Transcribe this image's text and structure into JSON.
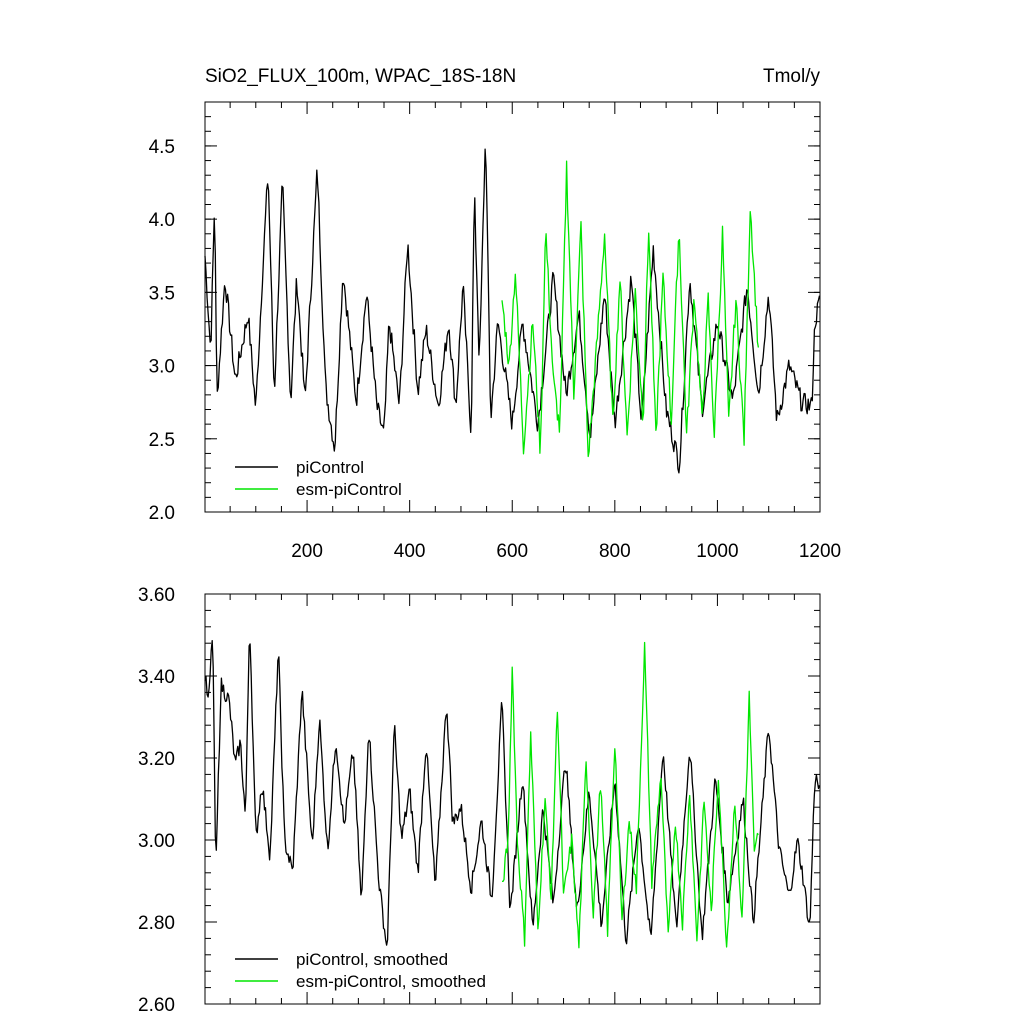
{
  "chart_data": [
    {
      "type": "line",
      "title": "SiO2_FLUX_100m, WPAC_18S-18N",
      "units_label": "Tmol/y",
      "xlim": [
        1,
        1200
      ],
      "ylim": [
        2.0,
        4.8
      ],
      "x_ticks": [
        200,
        400,
        600,
        800,
        1000,
        1200
      ],
      "x_tick_labels": [
        "200",
        "400",
        "600",
        "800",
        "1000",
        "1200"
      ],
      "y_ticks": [
        2.0,
        2.5,
        3.0,
        3.5,
        4.0,
        4.5
      ],
      "y_tick_labels": [
        "2.0",
        "2.5",
        "3.0",
        "3.5",
        "4.0",
        "4.5"
      ],
      "grid": false,
      "legend_position": "bottom-left",
      "series": [
        {
          "name": "piControl",
          "color": "#000000",
          "x_range": [
            1,
            1200
          ],
          "points": [
            [
              1,
              3.75
            ],
            [
              12,
              3.1
            ],
            [
              20,
              4.15
            ],
            [
              24,
              2.75
            ],
            [
              40,
              3.6
            ],
            [
              60,
              2.9
            ],
            [
              85,
              3.35
            ],
            [
              100,
              2.7
            ],
            [
              112,
              3.55
            ],
            [
              124,
              4.33
            ],
            [
              136,
              2.8
            ],
            [
              152,
              4.25
            ],
            [
              168,
              2.75
            ],
            [
              180,
              3.6
            ],
            [
              196,
              2.75
            ],
            [
              220,
              4.35
            ],
            [
              236,
              2.85
            ],
            [
              254,
              2.43
            ],
            [
              270,
              3.65
            ],
            [
              296,
              2.75
            ],
            [
              316,
              3.5
            ],
            [
              336,
              2.72
            ],
            [
              350,
              2.52
            ],
            [
              360,
              3.3
            ],
            [
              380,
              2.72
            ],
            [
              396,
              3.85
            ],
            [
              416,
              2.82
            ],
            [
              432,
              3.25
            ],
            [
              456,
              2.72
            ],
            [
              476,
              3.3
            ],
            [
              490,
              2.72
            ],
            [
              504,
              3.55
            ],
            [
              520,
              2.52
            ],
            [
              526,
              4.2
            ],
            [
              536,
              3.0
            ],
            [
              548,
              4.6
            ],
            [
              558,
              2.62
            ],
            [
              572,
              3.3
            ],
            [
              600,
              2.6
            ],
            [
              620,
              3.3
            ],
            [
              650,
              2.6
            ],
            [
              680,
              3.6
            ],
            [
              705,
              2.8
            ],
            [
              730,
              3.35
            ],
            [
              752,
              2.5
            ],
            [
              780,
              3.5
            ],
            [
              800,
              2.6
            ],
            [
              832,
              3.6
            ],
            [
              852,
              2.6
            ],
            [
              875,
              3.8
            ],
            [
              900,
              2.7
            ],
            [
              926,
              2.32
            ],
            [
              946,
              3.6
            ],
            [
              970,
              2.7
            ],
            [
              1000,
              3.3
            ],
            [
              1030,
              2.75
            ],
            [
              1058,
              3.55
            ],
            [
              1080,
              2.8
            ],
            [
              1100,
              3.5
            ],
            [
              1116,
              2.62
            ],
            [
              1140,
              3.0
            ],
            [
              1164,
              2.75
            ],
            [
              1184,
              2.72
            ],
            [
              1190,
              3.3
            ],
            [
              1200,
              3.45
            ]
          ]
        },
        {
          "name": "esm-piControl",
          "color": "#00e600",
          "x_range": [
            580,
            1080
          ],
          "points": [
            [
              580,
              3.45
            ],
            [
              594,
              3.0
            ],
            [
              606,
              3.65
            ],
            [
              622,
              2.45
            ],
            [
              640,
              3.3
            ],
            [
              655,
              2.4
            ],
            [
              665,
              3.95
            ],
            [
              680,
              2.9
            ],
            [
              693,
              2.55
            ],
            [
              706,
              4.36
            ],
            [
              720,
              2.8
            ],
            [
              734,
              3.95
            ],
            [
              748,
              2.37
            ],
            [
              762,
              3.0
            ],
            [
              780,
              3.9
            ],
            [
              796,
              2.6
            ],
            [
              810,
              3.6
            ],
            [
              824,
              2.52
            ],
            [
              840,
              3.5
            ],
            [
              855,
              2.62
            ],
            [
              866,
              3.95
            ],
            [
              880,
              2.5
            ],
            [
              894,
              3.6
            ],
            [
              910,
              2.62
            ],
            [
              925,
              3.95
            ],
            [
              940,
              2.52
            ],
            [
              955,
              3.5
            ],
            [
              970,
              2.62
            ],
            [
              982,
              3.45
            ],
            [
              994,
              2.52
            ],
            [
              1010,
              3.9
            ],
            [
              1022,
              2.6
            ],
            [
              1036,
              3.45
            ],
            [
              1052,
              2.5
            ],
            [
              1064,
              4.1
            ],
            [
              1080,
              3.1
            ]
          ]
        }
      ]
    },
    {
      "type": "line",
      "title": "",
      "xlim": [
        1,
        1200
      ],
      "ylim": [
        2.6,
        3.6
      ],
      "y_ticks": [
        2.6,
        2.8,
        3.0,
        3.2,
        3.4,
        3.6
      ],
      "y_tick_labels": [
        "2.60",
        "2.80",
        "3.00",
        "3.20",
        "3.40",
        "3.60"
      ],
      "grid": false,
      "legend_position": "bottom-left",
      "series": [
        {
          "name": "piControl, smoothed",
          "color": "#000000",
          "x_range": [
            1,
            1200
          ],
          "points": [
            [
              1,
              3.4
            ],
            [
              8,
              3.33
            ],
            [
              16,
              3.52
            ],
            [
              22,
              2.91
            ],
            [
              32,
              3.38
            ],
            [
              48,
              3.34
            ],
            [
              60,
              3.18
            ],
            [
              70,
              3.24
            ],
            [
              80,
              3.05
            ],
            [
              88,
              3.54
            ],
            [
              100,
              3.0
            ],
            [
              112,
              3.14
            ],
            [
              128,
              2.96
            ],
            [
              144,
              3.47
            ],
            [
              156,
              3.0
            ],
            [
              172,
              2.92
            ],
            [
              190,
              3.37
            ],
            [
              210,
              2.98
            ],
            [
              224,
              3.3
            ],
            [
              240,
              2.97
            ],
            [
              256,
              3.25
            ],
            [
              272,
              3.03
            ],
            [
              290,
              3.22
            ],
            [
              306,
              2.84
            ],
            [
              320,
              3.28
            ],
            [
              340,
              2.9
            ],
            [
              356,
              2.73
            ],
            [
              370,
              3.28
            ],
            [
              384,
              3.0
            ],
            [
              400,
              3.12
            ],
            [
              416,
              2.92
            ],
            [
              432,
              3.24
            ],
            [
              450,
              2.88
            ],
            [
              472,
              3.34
            ],
            [
              484,
              3.04
            ],
            [
              500,
              3.08
            ],
            [
              520,
              2.88
            ],
            [
              540,
              3.05
            ],
            [
              560,
              2.85
            ],
            [
              580,
              3.34
            ],
            [
              596,
              2.82
            ],
            [
              620,
              3.16
            ],
            [
              640,
              2.78
            ],
            [
              660,
              3.08
            ],
            [
              680,
              2.84
            ],
            [
              704,
              3.2
            ],
            [
              726,
              2.82
            ],
            [
              750,
              3.12
            ],
            [
              774,
              2.79
            ],
            [
              800,
              3.15
            ],
            [
              822,
              2.75
            ],
            [
              846,
              3.05
            ],
            [
              870,
              2.75
            ],
            [
              894,
              3.22
            ],
            [
              920,
              2.78
            ],
            [
              946,
              3.23
            ],
            [
              970,
              2.76
            ],
            [
              996,
              3.15
            ],
            [
              1020,
              2.85
            ],
            [
              1050,
              3.1
            ],
            [
              1070,
              2.8
            ],
            [
              1100,
              3.28
            ],
            [
              1120,
              2.98
            ],
            [
              1140,
              2.86
            ],
            [
              1156,
              3.0
            ],
            [
              1168,
              2.9
            ],
            [
              1180,
              2.78
            ],
            [
              1190,
              3.16
            ],
            [
              1200,
              3.12
            ]
          ]
        },
        {
          "name": "esm-piControl, smoothed",
          "color": "#00e600",
          "x_range": [
            580,
            1080
          ],
          "points": [
            [
              580,
              2.88
            ],
            [
              592,
              3.0
            ],
            [
              600,
              3.42
            ],
            [
              610,
              3.0
            ],
            [
              624,
              2.76
            ],
            [
              636,
              3.26
            ],
            [
              650,
              2.78
            ],
            [
              664,
              3.1
            ],
            [
              676,
              2.86
            ],
            [
              688,
              3.33
            ],
            [
              700,
              2.86
            ],
            [
              716,
              3.0
            ],
            [
              730,
              2.74
            ],
            [
              744,
              3.2
            ],
            [
              758,
              2.82
            ],
            [
              772,
              3.14
            ],
            [
              786,
              2.78
            ],
            [
              800,
              3.24
            ],
            [
              814,
              2.8
            ],
            [
              828,
              3.05
            ],
            [
              842,
              2.88
            ],
            [
              858,
              3.47
            ],
            [
              872,
              2.9
            ],
            [
              890,
              3.16
            ],
            [
              904,
              2.76
            ],
            [
              918,
              3.05
            ],
            [
              932,
              2.8
            ],
            [
              946,
              3.12
            ],
            [
              960,
              2.76
            ],
            [
              974,
              3.1
            ],
            [
              988,
              2.82
            ],
            [
              1002,
              3.16
            ],
            [
              1018,
              2.74
            ],
            [
              1034,
              3.1
            ],
            [
              1048,
              2.8
            ],
            [
              1062,
              3.35
            ],
            [
              1072,
              2.96
            ],
            [
              1080,
              3.02
            ]
          ]
        }
      ]
    }
  ]
}
